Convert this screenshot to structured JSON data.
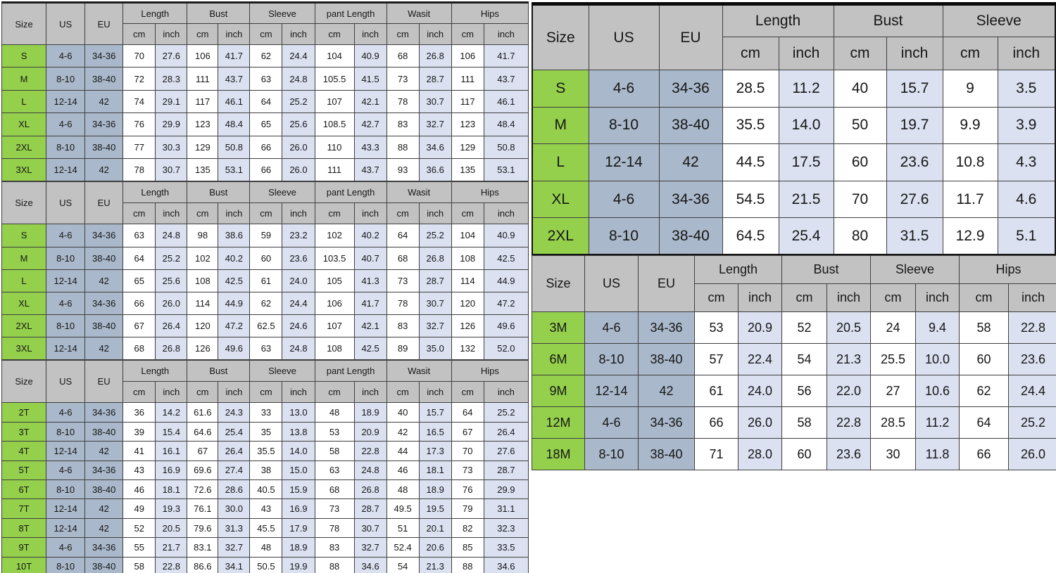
{
  "labels": {
    "size": "Size",
    "us": "US",
    "eu": "EU",
    "cm": "cm",
    "inch": "inch"
  },
  "colors": {
    "header_bg": "#c2c2c2",
    "size_col_bg": "#94d04c",
    "us_eu_col_bg": "#a9b8ca",
    "cm_cell_bg": "#ffffff",
    "inch_cell_bg": "#dbe1f1",
    "border": "#3f3f3f",
    "text": "#161616"
  },
  "tables": [
    {
      "name": "adult-size-chart-1",
      "groups": [
        "Length",
        "Bust",
        "Sleeve",
        "pant Length",
        "Wasit",
        "Hips"
      ],
      "rows": [
        {
          "size": "S",
          "us": "4-6",
          "eu": "34-36",
          "values": [
            "70",
            "27.6",
            "106",
            "41.7",
            "62",
            "24.4",
            "104",
            "40.9",
            "68",
            "26.8",
            "106",
            "41.7"
          ]
        },
        {
          "size": "M",
          "us": "8-10",
          "eu": "38-40",
          "values": [
            "72",
            "28.3",
            "111",
            "43.7",
            "63",
            "24.8",
            "105.5",
            "41.5",
            "73",
            "28.7",
            "111",
            "43.7"
          ]
        },
        {
          "size": "L",
          "us": "12-14",
          "eu": "42",
          "values": [
            "74",
            "29.1",
            "117",
            "46.1",
            "64",
            "25.2",
            "107",
            "42.1",
            "78",
            "30.7",
            "117",
            "46.1"
          ]
        },
        {
          "size": "XL",
          "us": "4-6",
          "eu": "34-36",
          "values": [
            "76",
            "29.9",
            "123",
            "48.4",
            "65",
            "25.6",
            "108.5",
            "42.7",
            "83",
            "32.7",
            "123",
            "48.4"
          ]
        },
        {
          "size": "2XL",
          "us": "8-10",
          "eu": "38-40",
          "values": [
            "77",
            "30.3",
            "129",
            "50.8",
            "66",
            "26.0",
            "110",
            "43.3",
            "88",
            "34.6",
            "129",
            "50.8"
          ]
        },
        {
          "size": "3XL",
          "us": "12-14",
          "eu": "42",
          "values": [
            "78",
            "30.7",
            "135",
            "53.1",
            "66",
            "26.0",
            "111",
            "43.7",
            "93",
            "36.6",
            "135",
            "53.1"
          ]
        }
      ]
    },
    {
      "name": "adult-size-chart-2",
      "groups": [
        "Length",
        "Bust",
        "Sleeve",
        "pant Length",
        "Wasit",
        "Hips"
      ],
      "rows": [
        {
          "size": "S",
          "us": "4-6",
          "eu": "34-36",
          "values": [
            "63",
            "24.8",
            "98",
            "38.6",
            "59",
            "23.2",
            "102",
            "40.2",
            "64",
            "25.2",
            "104",
            "40.9"
          ]
        },
        {
          "size": "M",
          "us": "8-10",
          "eu": "38-40",
          "values": [
            "64",
            "25.2",
            "102",
            "40.2",
            "60",
            "23.6",
            "103.5",
            "40.7",
            "68",
            "26.8",
            "108",
            "42.5"
          ]
        },
        {
          "size": "L",
          "us": "12-14",
          "eu": "42",
          "values": [
            "65",
            "25.6",
            "108",
            "42.5",
            "61",
            "24.0",
            "105",
            "41.3",
            "73",
            "28.7",
            "114",
            "44.9"
          ]
        },
        {
          "size": "XL",
          "us": "4-6",
          "eu": "34-36",
          "values": [
            "66",
            "26.0",
            "114",
            "44.9",
            "62",
            "24.4",
            "106",
            "41.7",
            "78",
            "30.7",
            "120",
            "47.2"
          ]
        },
        {
          "size": "2XL",
          "us": "8-10",
          "eu": "38-40",
          "values": [
            "67",
            "26.4",
            "120",
            "47.2",
            "62.5",
            "24.6",
            "107",
            "42.1",
            "83",
            "32.7",
            "126",
            "49.6"
          ]
        },
        {
          "size": "3XL",
          "us": "12-14",
          "eu": "42",
          "values": [
            "68",
            "26.8",
            "126",
            "49.6",
            "63",
            "24.8",
            "108",
            "42.5",
            "89",
            "35.0",
            "132",
            "52.0"
          ]
        }
      ]
    },
    {
      "name": "toddler-size-chart",
      "groups": [
        "Length",
        "Bust",
        "Sleeve",
        "pant Length",
        "Wasit",
        "Hips"
      ],
      "rows": [
        {
          "size": "2T",
          "us": "4-6",
          "eu": "34-36",
          "values": [
            "36",
            "14.2",
            "61.6",
            "24.3",
            "33",
            "13.0",
            "48",
            "18.9",
            "40",
            "15.7",
            "64",
            "25.2"
          ]
        },
        {
          "size": "3T",
          "us": "8-10",
          "eu": "38-40",
          "values": [
            "39",
            "15.4",
            "64.6",
            "25.4",
            "35",
            "13.8",
            "53",
            "20.9",
            "42",
            "16.5",
            "67",
            "26.4"
          ]
        },
        {
          "size": "4T",
          "us": "12-14",
          "eu": "42",
          "values": [
            "41",
            "16.1",
            "67",
            "26.4",
            "35.5",
            "14.0",
            "58",
            "22.8",
            "44",
            "17.3",
            "70",
            "27.6"
          ]
        },
        {
          "size": "5T",
          "us": "4-6",
          "eu": "34-36",
          "values": [
            "43",
            "16.9",
            "69.6",
            "27.4",
            "38",
            "15.0",
            "63",
            "24.8",
            "46",
            "18.1",
            "73",
            "28.7"
          ]
        },
        {
          "size": "6T",
          "us": "8-10",
          "eu": "38-40",
          "values": [
            "46",
            "18.1",
            "72.6",
            "28.6",
            "40.5",
            "15.9",
            "68",
            "26.8",
            "48",
            "18.9",
            "76",
            "29.9"
          ]
        },
        {
          "size": "7T",
          "us": "12-14",
          "eu": "42",
          "values": [
            "49",
            "19.3",
            "76.1",
            "30.0",
            "43",
            "16.9",
            "73",
            "28.7",
            "49.5",
            "19.5",
            "79",
            "31.1"
          ]
        },
        {
          "size": "8T",
          "us": "12-14",
          "eu": "42",
          "values": [
            "52",
            "20.5",
            "79.6",
            "31.3",
            "45.5",
            "17.9",
            "78",
            "30.7",
            "51",
            "20.1",
            "82",
            "32.3"
          ]
        },
        {
          "size": "9T",
          "us": "4-6",
          "eu": "34-36",
          "values": [
            "55",
            "21.7",
            "83.1",
            "32.7",
            "48",
            "18.9",
            "83",
            "32.7",
            "52.4",
            "20.6",
            "85",
            "33.5"
          ]
        },
        {
          "size": "10T",
          "us": "8-10",
          "eu": "38-40",
          "values": [
            "58",
            "22.8",
            "86.6",
            "34.1",
            "50.5",
            "19.9",
            "88",
            "34.6",
            "54",
            "21.3",
            "88",
            "34.6"
          ]
        }
      ]
    },
    {
      "name": "top-size-chart",
      "groups": [
        "Length",
        "Bust",
        "Sleeve"
      ],
      "rows": [
        {
          "size": "S",
          "us": "4-6",
          "eu": "34-36",
          "values": [
            "28.5",
            "11.2",
            "40",
            "15.7",
            "9",
            "3.5"
          ]
        },
        {
          "size": "M",
          "us": "8-10",
          "eu": "38-40",
          "values": [
            "35.5",
            "14.0",
            "50",
            "19.7",
            "9.9",
            "3.9"
          ]
        },
        {
          "size": "L",
          "us": "12-14",
          "eu": "42",
          "values": [
            "44.5",
            "17.5",
            "60",
            "23.6",
            "10.8",
            "4.3"
          ]
        },
        {
          "size": "XL",
          "us": "4-6",
          "eu": "34-36",
          "values": [
            "54.5",
            "21.5",
            "70",
            "27.6",
            "11.7",
            "4.6"
          ]
        },
        {
          "size": "2XL",
          "us": "8-10",
          "eu": "38-40",
          "values": [
            "64.5",
            "25.4",
            "80",
            "31.5",
            "12.9",
            "5.1"
          ]
        }
      ]
    },
    {
      "name": "baby-size-chart",
      "groups": [
        "Length",
        "Bust",
        "Sleeve",
        "Hips"
      ],
      "rows": [
        {
          "size": "3M",
          "us": "4-6",
          "eu": "34-36",
          "values": [
            "53",
            "20.9",
            "52",
            "20.5",
            "24",
            "9.4",
            "58",
            "22.8"
          ]
        },
        {
          "size": "6M",
          "us": "8-10",
          "eu": "38-40",
          "values": [
            "57",
            "22.4",
            "54",
            "21.3",
            "25.5",
            "10.0",
            "60",
            "23.6"
          ]
        },
        {
          "size": "9M",
          "us": "12-14",
          "eu": "42",
          "values": [
            "61",
            "24.0",
            "56",
            "22.0",
            "27",
            "10.6",
            "62",
            "24.4"
          ]
        },
        {
          "size": "12M",
          "us": "4-6",
          "eu": "34-36",
          "values": [
            "66",
            "26.0",
            "58",
            "22.8",
            "28.5",
            "11.2",
            "64",
            "25.2"
          ]
        },
        {
          "size": "18M",
          "us": "8-10",
          "eu": "38-40",
          "values": [
            "71",
            "28.0",
            "60",
            "23.6",
            "30",
            "11.8",
            "66",
            "26.0"
          ]
        }
      ]
    }
  ]
}
